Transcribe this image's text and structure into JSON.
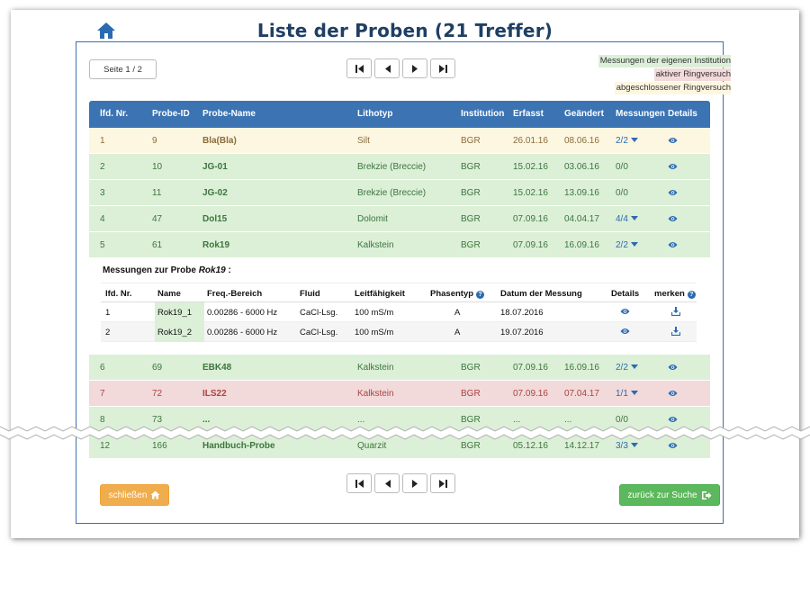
{
  "title": "Liste der Proben (21 Treffer)",
  "page_indicator": "Seite 1 / 2",
  "legend": {
    "own": "Messungen der eigenen Institution",
    "active": "aktiver Ringversuch",
    "done": "abgeschlossener Ringversuch",
    "colors": {
      "own": "#dcefd7",
      "active": "#f2d9da",
      "done": "#fdf6e1"
    }
  },
  "columns": [
    "lfd. Nr.",
    "Probe-ID",
    "Probe-Name",
    "Lithotyp",
    "Institution",
    "Erfasst",
    "Geändert",
    "Messungen",
    "Details"
  ],
  "rows_top": [
    {
      "nr": "1",
      "id": "9",
      "name": "Bla(Bla)",
      "litho": "Silt",
      "inst": "BGR",
      "erfasst": "26.01.16",
      "geaendert": "08.06.16",
      "mess": "2/2",
      "status": "done"
    },
    {
      "nr": "2",
      "id": "10",
      "name": "JG-01",
      "litho": "Brekzie (Breccie)",
      "inst": "BGR",
      "erfasst": "15.02.16",
      "geaendert": "03.06.16",
      "mess": "0/0",
      "status": "own"
    },
    {
      "nr": "3",
      "id": "11",
      "name": "JG-02",
      "litho": "Brekzie (Breccie)",
      "inst": "BGR",
      "erfasst": "15.02.16",
      "geaendert": "13.09.16",
      "mess": "0/0",
      "status": "own"
    },
    {
      "nr": "4",
      "id": "47",
      "name": "Dol15",
      "litho": "Dolomit",
      "inst": "BGR",
      "erfasst": "07.09.16",
      "geaendert": "04.04.17",
      "mess": "4/4",
      "status": "own"
    },
    {
      "nr": "5",
      "id": "61",
      "name": "Rok19",
      "litho": "Kalkstein",
      "inst": "BGR",
      "erfasst": "07.09.16",
      "geaendert": "16.09.16",
      "mess": "2/2",
      "status": "own"
    }
  ],
  "sub": {
    "title_prefix": "Messungen zur Probe",
    "title_name": "Rok19",
    "title_suffix": ":",
    "headers": [
      "lfd. Nr.",
      "Name",
      "Freq.-Bereich",
      "Fluid",
      "Leitfähigkeit",
      "Phasentyp",
      "Datum der Messung",
      "Details",
      "merken"
    ],
    "rows": [
      {
        "nr": "1",
        "name": "Rok19_1",
        "freq": "0.00286 - 6000 Hz",
        "fluid": "CaCl-Lsg.",
        "leit": "100 mS/m",
        "phase": "A",
        "datum": "18.07.2016"
      },
      {
        "nr": "2",
        "name": "Rok19_2",
        "freq": "0.00286 - 6000 Hz",
        "fluid": "CaCl-Lsg.",
        "leit": "100 mS/m",
        "phase": "A",
        "datum": "19.07.2016"
      }
    ]
  },
  "rows_bottom": [
    {
      "nr": "6",
      "id": "69",
      "name": "EBK48",
      "litho": "Kalkstein",
      "inst": "BGR",
      "erfasst": "07.09.16",
      "geaendert": "16.09.16",
      "mess": "2/2",
      "status": "own"
    },
    {
      "nr": "7",
      "id": "72",
      "name": "ILS22",
      "litho": "Kalkstein",
      "inst": "BGR",
      "erfasst": "07.09.16",
      "geaendert": "07.04.17",
      "mess": "1/1",
      "status": "active"
    },
    {
      "nr": "8",
      "id": "73",
      "name": "...",
      "litho": "...",
      "inst": "BGR",
      "erfasst": "...",
      "geaendert": "...",
      "mess": "0/0",
      "status": "own"
    },
    {
      "nr": "12",
      "id": "166",
      "name": "Handbuch-Probe",
      "litho": "Quarzit",
      "inst": "BGR",
      "erfasst": "05.12.16",
      "geaendert": "14.12.17",
      "mess": "3/3",
      "status": "own"
    }
  ],
  "buttons": {
    "close": "schließen",
    "back": "zurück zur Suche"
  }
}
